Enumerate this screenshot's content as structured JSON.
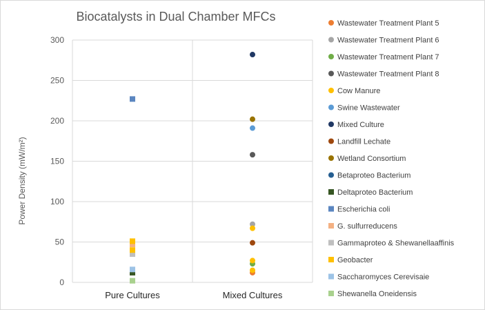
{
  "chart_data": {
    "type": "scatter",
    "title": "Biocatalysts in Dual Chamber MFCs",
    "xlabel": "",
    "ylabel": "Power Density (mW/m²)",
    "ylim": [
      0,
      300
    ],
    "yticks": [
      0,
      50,
      100,
      150,
      200,
      250,
      300
    ],
    "categories": [
      "Pure Cultures",
      "Mixed Cultures"
    ],
    "grid": true,
    "legend_position": "right",
    "series": [
      {
        "name": "Wastewater Treatment Plant 5",
        "marker": "circle",
        "color": "#ED7D31",
        "points": [
          {
            "x": "Mixed Cultures",
            "y": 12
          }
        ]
      },
      {
        "name": "Wastewater Treatment Plant 6",
        "marker": "circle",
        "color": "#A5A5A5",
        "points": [
          {
            "x": "Mixed Cultures",
            "y": 72
          }
        ]
      },
      {
        "name": "Wastewater Treatment Plant 7",
        "marker": "circle",
        "color": "#70AD47",
        "points": [
          {
            "x": "Mixed Cultures",
            "y": 23
          }
        ]
      },
      {
        "name": "Wastewater Treatment Plant 8",
        "marker": "circle",
        "color": "#595959",
        "points": [
          {
            "x": "Mixed Cultures",
            "y": 158
          }
        ]
      },
      {
        "name": "Cow Manure",
        "marker": "circle",
        "color": "#FFC000",
        "points": [
          {
            "x": "Mixed Cultures",
            "y": 67
          },
          {
            "x": "Mixed Cultures",
            "y": 27
          },
          {
            "x": "Mixed Cultures",
            "y": 15
          }
        ]
      },
      {
        "name": "Swine Wastewater",
        "marker": "circle",
        "color": "#5B9BD5",
        "points": [
          {
            "x": "Mixed Cultures",
            "y": 191
          }
        ]
      },
      {
        "name": "Mixed Culture",
        "marker": "circle",
        "color": "#203864",
        "points": [
          {
            "x": "Mixed Cultures",
            "y": 282
          }
        ]
      },
      {
        "name": "Landfill Lechate",
        "marker": "circle",
        "color": "#9E480E",
        "points": [
          {
            "x": "Mixed Cultures",
            "y": 49
          }
        ]
      },
      {
        "name": "Wetland Consortium",
        "marker": "circle",
        "color": "#997300",
        "points": [
          {
            "x": "Mixed Cultures",
            "y": 202
          }
        ]
      },
      {
        "name": "Betaproteo Bacterium",
        "marker": "circle",
        "color": "#255E91",
        "points": []
      },
      {
        "name": "Deltaproteo Bacterium",
        "marker": "square",
        "color": "#375623",
        "points": [
          {
            "x": "Pure Cultures",
            "y": 12
          }
        ]
      },
      {
        "name": "Escherichia coli",
        "marker": "square",
        "color": "#5B86C0",
        "points": [
          {
            "x": "Pure Cultures",
            "y": 227
          }
        ]
      },
      {
        "name": "G. sulfurreducens",
        "marker": "square",
        "color": "#F4B183",
        "points": [
          {
            "x": "Pure Cultures",
            "y": 47
          }
        ]
      },
      {
        "name": "Gammaproteo & Shewanellaaffinis",
        "marker": "square",
        "color": "#BFBFBF",
        "points": [
          {
            "x": "Pure Cultures",
            "y": 35
          }
        ]
      },
      {
        "name": "Geobacter",
        "marker": "square",
        "color": "#FFC000",
        "points": [
          {
            "x": "Pure Cultures",
            "y": 51
          },
          {
            "x": "Pure Cultures",
            "y": 40
          }
        ]
      },
      {
        "name": "Saccharomyces Cerevisaie",
        "marker": "square",
        "color": "#9DC3E6",
        "points": [
          {
            "x": "Pure Cultures",
            "y": 16
          }
        ]
      },
      {
        "name": "Shewanella Oneidensis",
        "marker": "square",
        "color": "#A9D18E",
        "points": [
          {
            "x": "Pure Cultures",
            "y": 2
          }
        ]
      }
    ]
  }
}
